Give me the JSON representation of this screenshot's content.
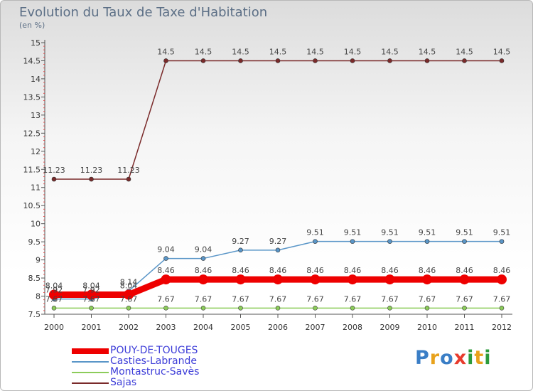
{
  "header": {
    "title": "Evolution du Taux de Taxe d'Habitation",
    "unit": "(en %)"
  },
  "logo": {
    "text": "Proxiti",
    "letters": [
      {
        "ch": "P",
        "color": "#3a7ec6"
      },
      {
        "ch": "r",
        "color": "#e8a21c"
      },
      {
        "ch": "o",
        "color": "#3a7ec6"
      },
      {
        "ch": "x",
        "color": "#e83b2d"
      },
      {
        "ch": "i",
        "color": "#2c9b3c"
      },
      {
        "ch": "t",
        "color": "#e8a21c"
      },
      {
        "ch": "i",
        "color": "#2c9b3c"
      }
    ]
  },
  "chart_data": {
    "type": "line",
    "title": "Evolution du Taux de Taxe d'Habitation",
    "ylabel": "(en %)",
    "xlabel": "",
    "ylim": [
      7.5,
      15
    ],
    "yticks": [
      "7.5",
      "8",
      "8.5",
      "9",
      "9.5",
      "10",
      "10.5",
      "11",
      "11.5",
      "12",
      "12.5",
      "13",
      "13.5",
      "14",
      "14.5",
      "15"
    ],
    "x": [
      "2000",
      "2001",
      "2002",
      "2003",
      "2004",
      "2005",
      "2006",
      "2007",
      "2008",
      "2009",
      "2010",
      "2011",
      "2012"
    ],
    "grid": false,
    "legend_position": "bottom-left",
    "series": [
      {
        "name": "POUY-DE-TOUGES",
        "color": "#ee0000",
        "label_color": "#3d3dd8",
        "values": [
          8.04,
          8.04,
          8.04,
          8.46,
          8.46,
          8.46,
          8.46,
          8.46,
          8.46,
          8.46,
          8.46,
          8.46,
          8.46
        ],
        "labels": [
          "8.04",
          "8.04",
          "8.04",
          "8.46",
          "8.46",
          "8.46",
          "8.46",
          "8.46",
          "8.46",
          "8.46",
          "8.46",
          "8.46",
          "8.46"
        ]
      },
      {
        "name": "Casties-Labrande",
        "color": "#5a96c8",
        "label_color": "#3d3dd8",
        "values": [
          7.92,
          7.92,
          8.14,
          9.04,
          9.04,
          9.27,
          9.27,
          9.51,
          9.51,
          9.51,
          9.51,
          9.51,
          9.51
        ],
        "labels": [
          "7.92",
          "7.92",
          "8.14",
          "9.04",
          "9.04",
          "9.27",
          "9.27",
          "9.51",
          "9.51",
          "9.51",
          "9.51",
          "9.51",
          "9.51"
        ]
      },
      {
        "name": "Montastruc-Savès",
        "color": "#8ccc5a",
        "label_color": "#3d3dd8",
        "values": [
          7.67,
          7.67,
          7.67,
          7.67,
          7.67,
          7.67,
          7.67,
          7.67,
          7.67,
          7.67,
          7.67,
          7.67,
          7.67
        ],
        "labels": [
          "7.67",
          "7.67",
          "7.67",
          "7.67",
          "7.67",
          "7.67",
          "7.67",
          "7.67",
          "7.67",
          "7.67",
          "7.67",
          "7.67",
          "7.67"
        ]
      },
      {
        "name": "Sajas",
        "color": "#7a2a2a",
        "label_color": "#3d3dd8",
        "values": [
          11.23,
          11.23,
          11.23,
          14.5,
          14.5,
          14.5,
          14.5,
          14.5,
          14.5,
          14.5,
          14.5,
          14.5,
          14.5
        ],
        "labels": [
          "11.23",
          "11.23",
          "11.23",
          "14.5",
          "14.5",
          "14.5",
          "14.5",
          "14.5",
          "14.5",
          "14.5",
          "14.5",
          "14.5",
          "14.5"
        ]
      }
    ]
  }
}
